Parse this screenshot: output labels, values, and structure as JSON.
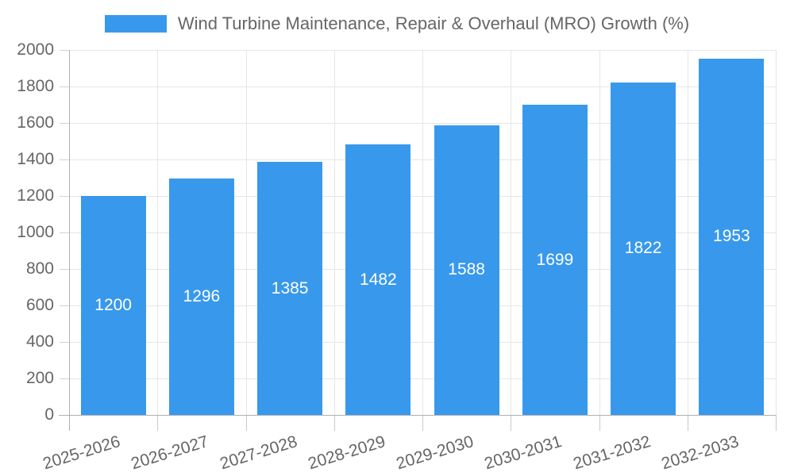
{
  "chart_data": {
    "type": "bar",
    "title": "Wind Turbine Maintenance, Repair & Overhaul (MRO) Growth (%)",
    "series_name": "Wind Turbine Maintenance, Repair & Overhaul (MRO) Growth (%)",
    "categories": [
      "2025-2026",
      "2026-2027",
      "2027-2028",
      "2028-2029",
      "2029-2030",
      "2030-2031",
      "2031-2032",
      "2032-2033"
    ],
    "values": [
      1200,
      1296,
      1385,
      1482,
      1588,
      1699,
      1822,
      1953
    ],
    "xlabel": "",
    "ylabel": "",
    "ylim": [
      0,
      2000
    ],
    "ytick_step": 200,
    "ytick_labels": [
      "0",
      "200",
      "400",
      "600",
      "800",
      "1000",
      "1200",
      "1400",
      "1600",
      "1800",
      "2000"
    ],
    "grid": true,
    "legend_position": "top",
    "bar_color": "#3899ec",
    "value_label_color": "#ffffff",
    "axis_text_color": "#666666",
    "gridline_color": "#e6e6e6",
    "x_label_rotation_deg": -17
  }
}
